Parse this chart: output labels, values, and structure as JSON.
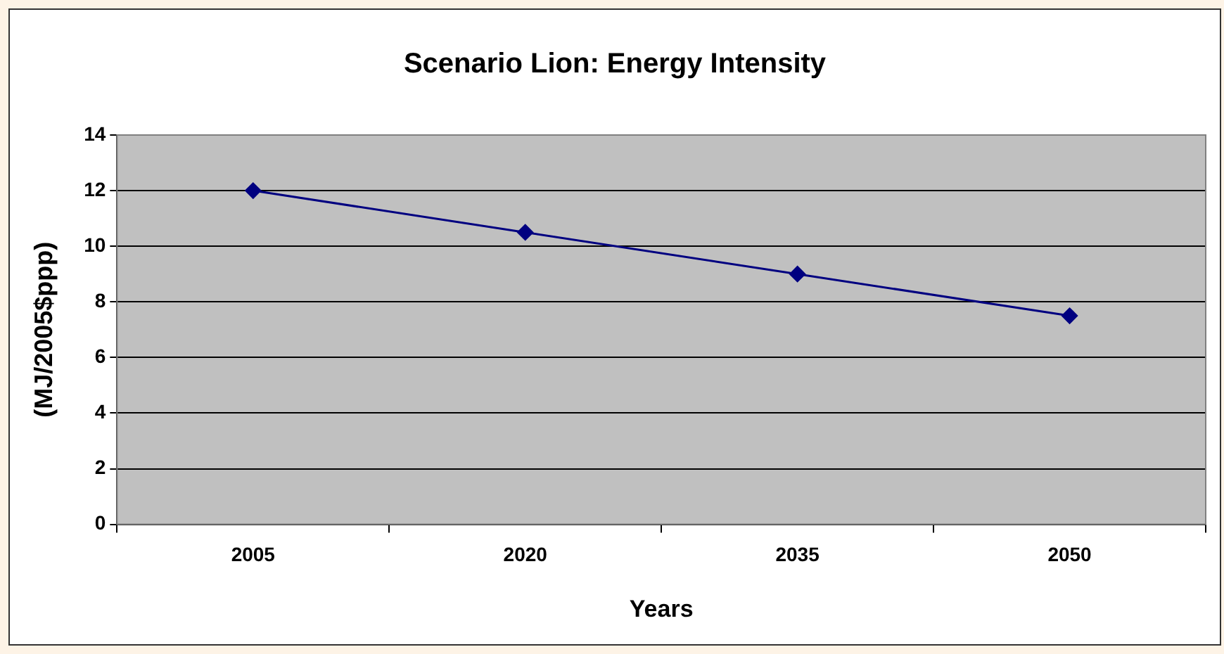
{
  "chart_data": {
    "type": "line",
    "title": "Scenario Lion: Energy Intensity",
    "xlabel": "Years",
    "ylabel": "(MJ/2005$ppp)",
    "categories": [
      "2005",
      "2020",
      "2035",
      "2050"
    ],
    "series": [
      {
        "color": "#000080",
        "values": [
          12,
          10.5,
          9,
          7.5
        ]
      }
    ],
    "ylim": [
      0,
      14
    ],
    "yticks": [
      0,
      2,
      4,
      6,
      8,
      10,
      12,
      14
    ],
    "grid": "y",
    "legend": false,
    "marker": "diamond",
    "line_style": "solid"
  }
}
